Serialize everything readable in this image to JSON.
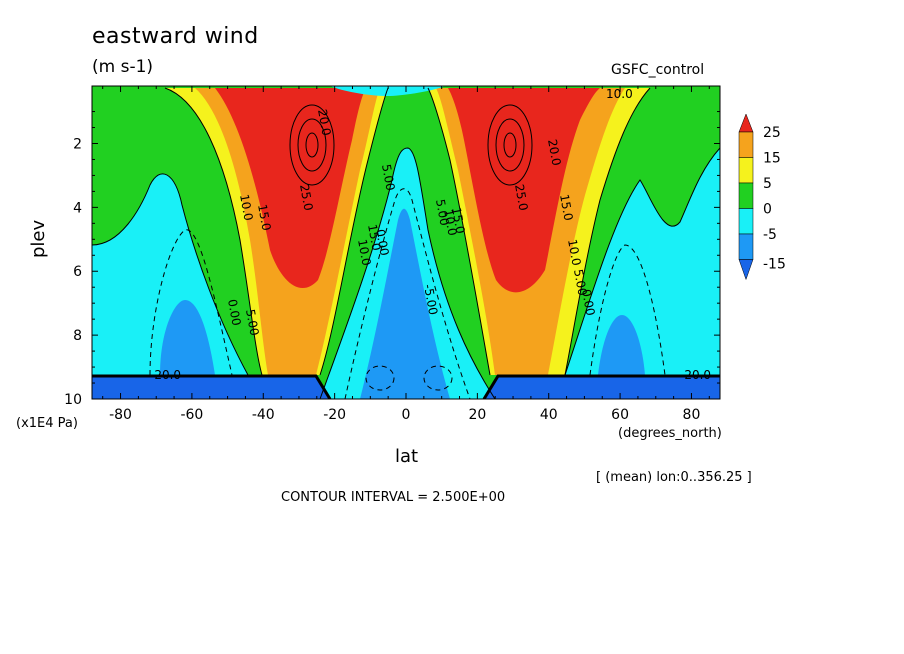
{
  "header": {
    "title": "eastward wind",
    "units": "(m s-1)",
    "dataset": "GSFC_control"
  },
  "footer": {
    "mean_label": "[ (mean) lon:0..356.25 ]",
    "contour_interval": "CONTOUR INTERVAL = 2.500E+00"
  },
  "chart_data": {
    "type": "heatmap",
    "title": "eastward wind",
    "units": "(m s-1)",
    "xlabel": "lat",
    "xunits": "(degrees_north)",
    "ylabel": "plev",
    "yunits": "(x1E4 Pa)",
    "xlim": [
      -88,
      88
    ],
    "ylim": [
      10,
      0.2
    ],
    "x_ticks": [
      -80,
      -60,
      -40,
      -20,
      0,
      20,
      40,
      60,
      80
    ],
    "x_tick_labels": [
      "-80",
      "-60",
      "-40",
      "-20",
      "0",
      "20",
      "40",
      "60",
      "80"
    ],
    "y_ticks": [
      2,
      4,
      6,
      8,
      10
    ],
    "y_tick_labels": [
      "2",
      "4",
      "6",
      "8",
      "10"
    ],
    "contour_interval": 2.5,
    "colorbar": {
      "labels": [
        "25",
        "15",
        "5",
        "0",
        "-5",
        "-15"
      ],
      "colors": [
        "#e8261d",
        "#f5a31d",
        "#f5f21d",
        "#21d021",
        "#19f0f7",
        "#1e99f5",
        "#1865e8"
      ]
    },
    "contour_labels": [
      {
        "text": "10.0",
        "lat": -60
      },
      {
        "text": "15.0",
        "lat": -56
      },
      {
        "text": "25.0",
        "lat": -33
      },
      {
        "text": "20.0",
        "lat": -25
      },
      {
        "text": "5.00",
        "lat": -10
      },
      {
        "text": "10.0",
        "lat": -17
      },
      {
        "text": "15.0",
        "lat": -14
      },
      {
        "text": "0.00",
        "lat": -10
      },
      {
        "text": "0.00",
        "lat": -52
      },
      {
        "text": "5.00",
        "lat": -48
      },
      {
        "text": "5.00",
        "lat": 8
      },
      {
        "text": "10.0",
        "lat": 12
      },
      {
        "text": "15.0",
        "lat": 16
      },
      {
        "text": "25.0",
        "lat": 28
      },
      {
        "text": "20.0",
        "lat": 37
      },
      {
        "text": "15.0",
        "lat": 42
      },
      {
        "text": "10.0",
        "lat": 45
      },
      {
        "text": "5.00",
        "lat": 48
      },
      {
        "text": "0.00",
        "lat": 50
      },
      {
        "text": "-5.00",
        "lat": 5
      },
      {
        "text": "10.0",
        "lat": 60
      },
      {
        "text": "-20.0",
        "lat": -78
      },
      {
        "text": "-20.0",
        "lat": 75
      }
    ]
  }
}
